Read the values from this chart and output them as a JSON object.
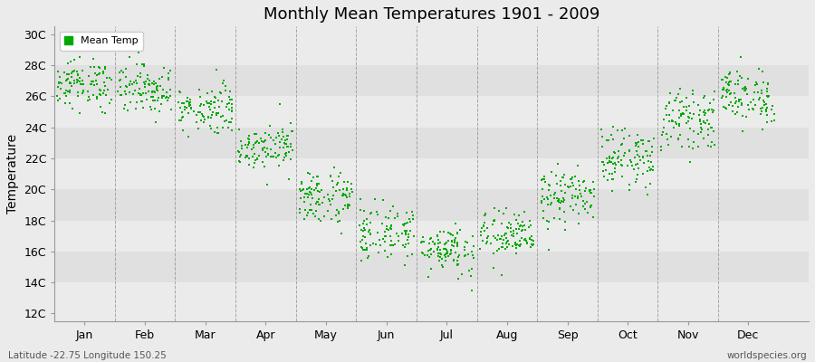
{
  "title": "Monthly Mean Temperatures 1901 - 2009",
  "ylabel": "Temperature",
  "xlabel_bottom": "Latitude -22.75 Longitude 150.25",
  "watermark": "worldspecies.org",
  "legend_label": "Mean Temp",
  "dot_color": "#00aa00",
  "dot_size": 3,
  "yticks": [
    12,
    14,
    16,
    18,
    20,
    22,
    24,
    26,
    28,
    30
  ],
  "ytick_labels": [
    "12C",
    "14C",
    "16C",
    "18C",
    "20C",
    "22C",
    "24C",
    "26C",
    "28C",
    "30C"
  ],
  "ylim": [
    11.5,
    30.5
  ],
  "months": [
    "Jan",
    "Feb",
    "Mar",
    "Apr",
    "May",
    "Jun",
    "Jul",
    "Aug",
    "Sep",
    "Oct",
    "Nov",
    "Dec"
  ],
  "mean_temps": [
    26.8,
    26.5,
    25.2,
    22.8,
    19.5,
    17.2,
    16.2,
    17.0,
    19.5,
    22.0,
    24.5,
    26.0
  ],
  "std_temps": [
    0.8,
    0.8,
    0.8,
    0.7,
    0.9,
    0.9,
    0.8,
    0.8,
    0.9,
    0.9,
    0.9,
    0.9
  ],
  "n_years": 109,
  "bg_color_light": "#ebebeb",
  "bg_color_dark": "#e0e0e0",
  "spine_color": "#999999",
  "grid_color": "#888888",
  "background_color": "#ebebeb"
}
